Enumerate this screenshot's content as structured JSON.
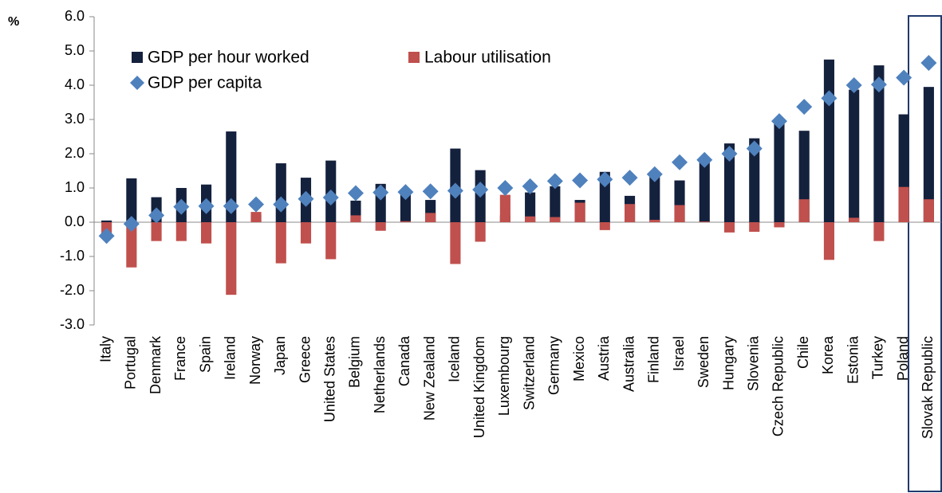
{
  "chart_data": {
    "type": "bar",
    "y_label": "%",
    "categories": [
      "Italy",
      "Portugal",
      "Denmark",
      "France",
      "Spain",
      "Ireland",
      "Norway",
      "Japan",
      "Greece",
      "United States",
      "Belgium",
      "Netherlands",
      "Canada",
      "New Zealand",
      "Iceland",
      "United Kingdom",
      "Luxembourg",
      "Switzerland",
      "Germany",
      "Mexico",
      "Austria",
      "Australia",
      "Finland",
      "Israel",
      "Sweden",
      "Hungary",
      "Slovenia",
      "Czech Republic",
      "Chile",
      "Korea",
      "Estonia",
      "Turkey",
      "Poland",
      "Slovak Republic"
    ],
    "series": [
      {
        "name": "GDP per hour worked",
        "color": "#14213d",
        "kind": "bar",
        "values": [
          0.05,
          1.28,
          0.73,
          1.0,
          1.1,
          2.65,
          0.22,
          1.72,
          1.3,
          1.8,
          0.63,
          1.12,
          0.85,
          0.65,
          2.15,
          1.52,
          0.2,
          0.87,
          1.05,
          0.65,
          1.47,
          0.77,
          1.35,
          1.22,
          1.8,
          2.3,
          2.45,
          3.0,
          2.67,
          4.75,
          3.87,
          4.58,
          3.15,
          3.95
        ]
      },
      {
        "name": "Labour utilisation",
        "color": "#c0504d",
        "kind": "bar",
        "values": [
          -0.4,
          -1.32,
          -0.55,
          -0.55,
          -0.62,
          -2.12,
          0.3,
          -1.2,
          -0.62,
          -1.08,
          0.2,
          -0.25,
          0.03,
          0.27,
          -1.22,
          -0.57,
          0.8,
          0.17,
          0.15,
          0.57,
          -0.23,
          0.53,
          0.07,
          0.5,
          0.02,
          -0.3,
          -0.28,
          -0.15,
          0.67,
          -1.1,
          0.13,
          -0.55,
          1.03,
          0.67
        ]
      },
      {
        "name": "GDP per capita",
        "color": "#4f81bd",
        "kind": "diamond",
        "values": [
          -0.4,
          -0.05,
          0.2,
          0.45,
          0.47,
          0.47,
          0.52,
          0.52,
          0.68,
          0.72,
          0.85,
          0.87,
          0.88,
          0.9,
          0.92,
          0.95,
          1.0,
          1.05,
          1.2,
          1.22,
          1.25,
          1.3,
          1.4,
          1.75,
          1.82,
          2.0,
          2.15,
          2.95,
          3.37,
          3.62,
          4.0,
          4.02,
          4.22,
          4.65
        ]
      }
    ],
    "ylim": [
      -3,
      6
    ],
    "yticks": [
      {
        "value": -3,
        "label": "-3.0"
      },
      {
        "value": -2,
        "label": "-2.0"
      },
      {
        "value": -1,
        "label": "-1.0"
      },
      {
        "value": 0,
        "label": "0.0"
      },
      {
        "value": 1,
        "label": "1.0"
      },
      {
        "value": 2,
        "label": "2.0"
      },
      {
        "value": 3,
        "label": "3.0"
      },
      {
        "value": 4,
        "label": "4.0"
      },
      {
        "value": 5,
        "label": "5.0"
      },
      {
        "value": 6,
        "label": "6.0"
      }
    ],
    "grid": false,
    "legend": "upper left"
  }
}
